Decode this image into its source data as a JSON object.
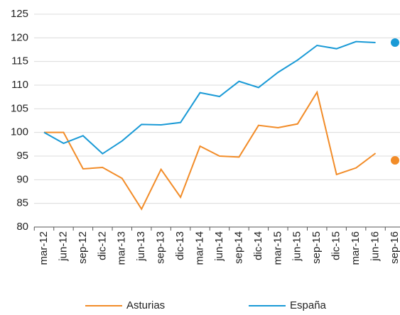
{
  "chart_data": {
    "type": "line",
    "categories": [
      "mar-12",
      "jun-12",
      "sep-12",
      "dic-12",
      "mar-13",
      "jun-13",
      "sep-13",
      "dic-13",
      "mar-14",
      "jun-14",
      "sep-14",
      "dic-14",
      "mar-15",
      "jun-15",
      "sep-15",
      "dic-15",
      "mar-16",
      "jun-16",
      "sep-16"
    ],
    "series": [
      {
        "name": "Asturias",
        "color": "#f28c28",
        "values": [
          100,
          100,
          92.3,
          92.6,
          90.3,
          83.8,
          92.2,
          86.3,
          97.1,
          95.0,
          94.8,
          101.5,
          101.0,
          101.8,
          108.5,
          91.1,
          92.5,
          95.6,
          94.1
        ]
      },
      {
        "name": "España",
        "color": "#1a9ad6",
        "values": [
          100,
          97.7,
          99.3,
          95.5,
          98.2,
          101.7,
          101.6,
          102.1,
          108.4,
          107.6,
          110.8,
          109.5,
          112.7,
          115.3,
          118.4,
          117.7,
          119.2,
          119.0,
          119.0
        ]
      }
    ],
    "ylim": [
      80,
      125
    ],
    "yticks": [
      80,
      85,
      90,
      95,
      100,
      105,
      110,
      115,
      120,
      125
    ],
    "grid": true
  }
}
